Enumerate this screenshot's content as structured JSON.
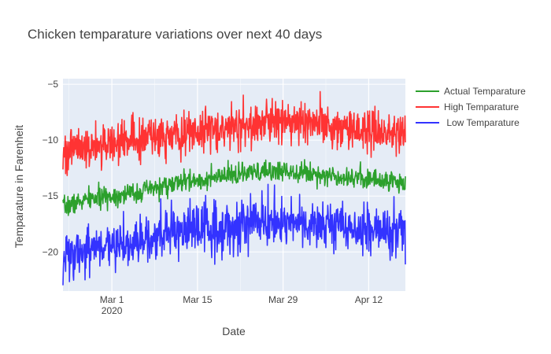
{
  "chart_data": {
    "type": "line",
    "title": "Chicken temparature variations over next 40 days",
    "xlabel": "Date",
    "ylabel": "Temparature in Farenheit",
    "x_range": [
      "2020-02-22",
      "2020-04-18"
    ],
    "ylim": [
      -23.5,
      -4.5
    ],
    "x_ticks": [
      {
        "date": "2020-03-01",
        "label": "Mar 1",
        "sub": "2020"
      },
      {
        "date": "2020-03-15",
        "label": "Mar 15",
        "sub": ""
      },
      {
        "date": "2020-03-29",
        "label": "Mar 29",
        "sub": ""
      },
      {
        "date": "2020-04-12",
        "label": "Apr 12",
        "sub": ""
      }
    ],
    "y_ticks": [
      -5,
      -10,
      -15,
      -20
    ],
    "y_tick_labels": [
      "−5",
      "−10",
      "−15",
      "−20"
    ],
    "grid": true,
    "legend_position": "top-right",
    "series": [
      {
        "name": "Actual Temparature",
        "color": "#2ca02c",
        "x": [
          "2020-02-22",
          "2020-02-26",
          "2020-03-01",
          "2020-03-05",
          "2020-03-09",
          "2020-03-13",
          "2020-03-17",
          "2020-03-21",
          "2020-03-25",
          "2020-03-29",
          "2020-04-02",
          "2020-04-06",
          "2020-04-10",
          "2020-04-14",
          "2020-04-18"
        ],
        "y": [
          -16.0,
          -15.3,
          -15.0,
          -14.7,
          -14.2,
          -13.7,
          -13.5,
          -13.1,
          -12.9,
          -12.7,
          -12.9,
          -13.2,
          -13.3,
          -13.6,
          -13.8
        ]
      },
      {
        "name": "High Temparature",
        "color": "#ff3333",
        "x": [
          "2020-02-22",
          "2020-02-26",
          "2020-03-01",
          "2020-03-05",
          "2020-03-09",
          "2020-03-13",
          "2020-03-17",
          "2020-03-21",
          "2020-03-25",
          "2020-03-29",
          "2020-04-02",
          "2020-04-06",
          "2020-04-10",
          "2020-04-14",
          "2020-04-18"
        ],
        "y": [
          -11.2,
          -10.6,
          -10.3,
          -9.9,
          -9.6,
          -9.3,
          -9.1,
          -8.7,
          -8.5,
          -8.3,
          -8.6,
          -8.8,
          -9.0,
          -9.3,
          -9.5
        ]
      },
      {
        "name": " Low Temparature",
        "color": "#3333ff",
        "x": [
          "2020-02-22",
          "2020-02-26",
          "2020-03-01",
          "2020-03-05",
          "2020-03-09",
          "2020-03-13",
          "2020-03-17",
          "2020-03-21",
          "2020-03-25",
          "2020-03-29",
          "2020-04-02",
          "2020-04-06",
          "2020-04-10",
          "2020-04-14",
          "2020-04-18"
        ],
        "y": [
          -20.5,
          -19.8,
          -19.5,
          -19.2,
          -18.8,
          -18.3,
          -18.1,
          -17.6,
          -17.4,
          -17.2,
          -17.5,
          -17.7,
          -17.9,
          -18.1,
          -18.3
        ]
      }
    ]
  }
}
